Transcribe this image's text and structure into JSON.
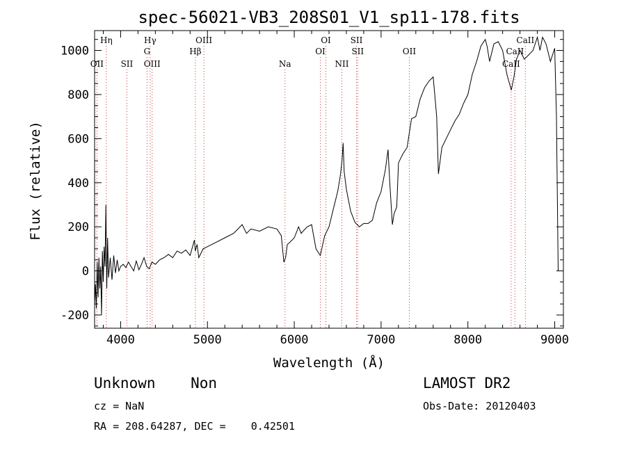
{
  "chart_data": {
    "type": "line",
    "title": "spec-56021-VB3_208S01_V1_sp11-178.fits",
    "xlabel": "Wavelength (Å)",
    "ylabel": "Flux (relative)",
    "xlim": [
      3700,
      9100
    ],
    "ylim": [
      -260,
      1090
    ],
    "xticks": [
      4000,
      5000,
      6000,
      7000,
      8000,
      9000
    ],
    "yticks": [
      -200,
      0,
      200,
      400,
      600,
      800,
      1000
    ],
    "grid": false,
    "series": [
      {
        "x": [
          3700,
          3710,
          3720,
          3730,
          3740,
          3750,
          3760,
          3770,
          3780,
          3790,
          3800,
          3810,
          3820,
          3830,
          3840,
          3850,
          3860,
          3880,
          3900,
          3920,
          3940,
          3960,
          3980,
          4000,
          4030,
          4060,
          4090,
          4120,
          4150,
          4180,
          4210,
          4240,
          4270,
          4300,
          4330,
          4360,
          4400,
          4450,
          4500,
          4550,
          4600,
          4650,
          4700,
          4750,
          4800,
          4850,
          4860,
          4880,
          4900,
          4950,
          5000,
          5100,
          5200,
          5300,
          5400,
          5450,
          5500,
          5600,
          5700,
          5800,
          5850,
          5880,
          5900,
          5920,
          5950,
          6000,
          6050,
          6080,
          6100,
          6150,
          6200,
          6250,
          6300,
          6350,
          6400,
          6450,
          6500,
          6530,
          6550,
          6563,
          6575,
          6600,
          6650,
          6700,
          6750,
          6800,
          6850,
          6900,
          6950,
          7000,
          7050,
          7080,
          7100,
          7130,
          7150,
          7180,
          7200,
          7250,
          7300,
          7350,
          7400,
          7450,
          7500,
          7550,
          7600,
          7640,
          7660,
          7680,
          7700,
          7750,
          7800,
          7850,
          7900,
          7950,
          8000,
          8050,
          8100,
          8150,
          8200,
          8220,
          8250,
          8300,
          8350,
          8400,
          8450,
          8500,
          8530,
          8560,
          8600,
          8650,
          8700,
          8750,
          8800,
          8830,
          8860,
          8900,
          8950,
          9000,
          9020,
          9040
        ],
        "y": [
          -150,
          -60,
          -170,
          40,
          -120,
          60,
          -80,
          20,
          -200,
          90,
          -50,
          110,
          20,
          300,
          -80,
          150,
          -30,
          60,
          -40,
          70,
          -10,
          50,
          0,
          20,
          30,
          15,
          40,
          20,
          0,
          45,
          5,
          30,
          60,
          20,
          10,
          40,
          30,
          50,
          60,
          75,
          60,
          90,
          80,
          95,
          70,
          140,
          90,
          120,
          60,
          100,
          110,
          130,
          150,
          170,
          210,
          170,
          190,
          180,
          200,
          190,
          160,
          40,
          60,
          120,
          130,
          150,
          200,
          170,
          180,
          200,
          210,
          100,
          70,
          160,
          200,
          280,
          360,
          430,
          500,
          580,
          450,
          370,
          270,
          220,
          200,
          215,
          215,
          230,
          310,
          360,
          460,
          550,
          400,
          210,
          260,
          290,
          490,
          530,
          560,
          690,
          700,
          780,
          830,
          860,
          880,
          700,
          440,
          500,
          560,
          600,
          640,
          680,
          710,
          760,
          800,
          890,
          950,
          1020,
          1050,
          1020,
          950,
          1030,
          1040,
          1000,
          890,
          820,
          880,
          960,
          1000,
          960,
          980,
          1000,
          1060,
          1000,
          1060,
          1030,
          950,
          1010,
          700,
          0
        ]
      }
    ],
    "line_markers": [
      {
        "label": "Hη",
        "x": 3835,
        "row": 1
      },
      {
        "label": "OII",
        "x": 3727,
        "row": 3
      },
      {
        "label": "SII",
        "x": 4072,
        "row": 3
      },
      {
        "label": "Hγ",
        "x": 4340,
        "row": 1
      },
      {
        "label": "G",
        "x": 4304,
        "row": 2
      },
      {
        "label": "OIII",
        "x": 4363,
        "row": 3
      },
      {
        "label": "OIII",
        "x": 4959,
        "row": 1
      },
      {
        "label": "Hβ",
        "x": 4861,
        "row": 2
      },
      {
        "label": "Na",
        "x": 5893,
        "row": 3
      },
      {
        "label": "OI",
        "x": 6364,
        "row": 1
      },
      {
        "label": "OI",
        "x": 6300,
        "row": 2
      },
      {
        "label": "NII",
        "x": 6548,
        "row": 3
      },
      {
        "label": "SII",
        "x": 6717,
        "row": 1
      },
      {
        "label": "SII",
        "x": 6731,
        "row": 2
      },
      {
        "label": "OII",
        "x": 7325,
        "row": 2
      },
      {
        "label": "CaII",
        "x": 8662,
        "row": 1
      },
      {
        "label": "CaII",
        "x": 8542,
        "row": 2
      },
      {
        "label": "CaII",
        "x": 8498,
        "row": 3
      }
    ]
  },
  "info": {
    "class_label": "Unknown    Non",
    "survey": "LAMOST DR2",
    "cz": "cz = NaN",
    "obs_date": "Obs-Date: 20120403",
    "coords": "RA = 208.64287, DEC =    0.42501"
  }
}
